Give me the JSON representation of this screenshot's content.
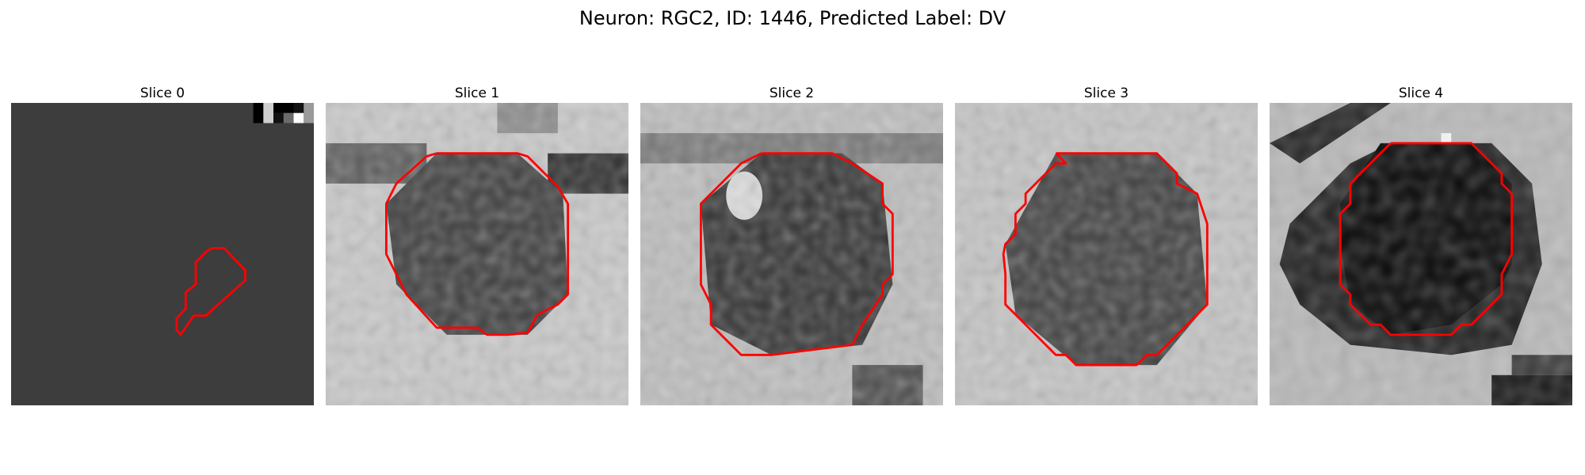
{
  "figure": {
    "title": "Neuron: RGC2, ID: 1446, Predicted Label: DV"
  },
  "colors": {
    "contour": "#ff0000",
    "background": "#ffffff"
  },
  "slices": [
    {
      "label": "Slice 0"
    },
    {
      "label": "Slice 1"
    },
    {
      "label": "Slice 2"
    },
    {
      "label": "Slice 3"
    },
    {
      "label": "Slice 4"
    }
  ]
}
